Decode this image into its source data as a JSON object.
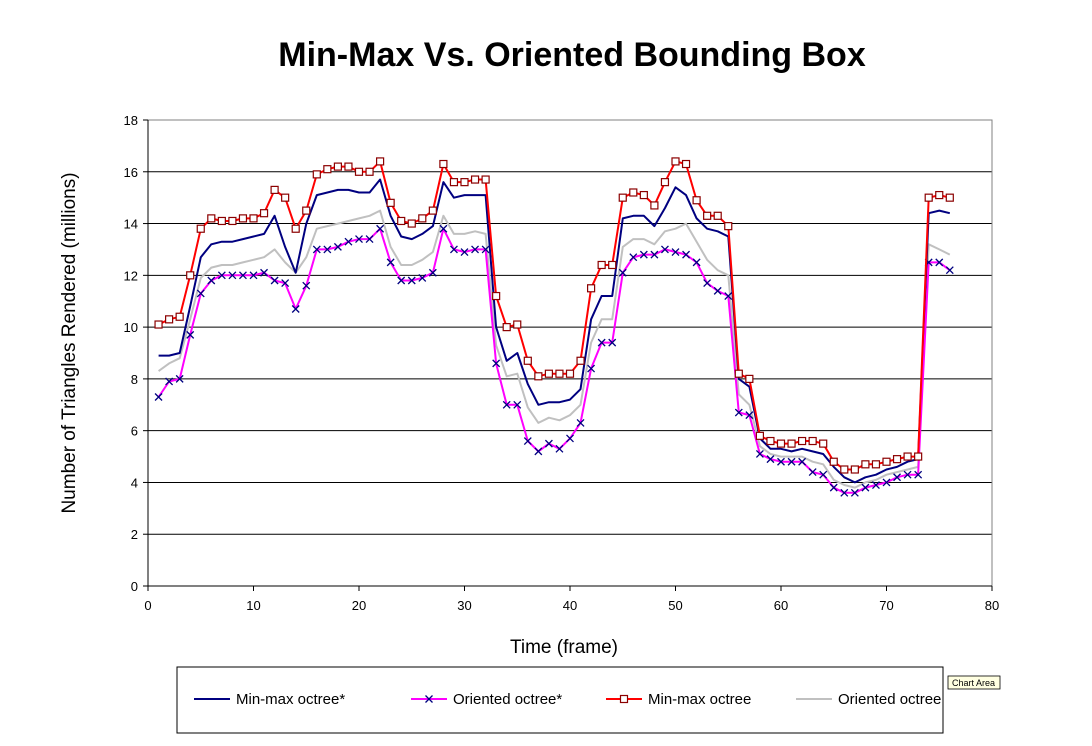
{
  "chart_data": {
    "type": "line",
    "title": "Min-Max Vs. Oriented Bounding Box",
    "xlabel": "Time (frame)",
    "ylabel": "Number of Triangles Rendered (millions)",
    "xlim": [
      0,
      80
    ],
    "ylim": [
      0,
      18
    ],
    "xticks": [
      0,
      10,
      20,
      30,
      40,
      50,
      60,
      70,
      80
    ],
    "yticks": [
      0,
      2,
      4,
      6,
      8,
      10,
      12,
      14,
      16,
      18
    ],
    "grid": "horizontal",
    "legend_position": "bottom",
    "x": [
      1,
      2,
      3,
      4,
      5,
      6,
      7,
      8,
      9,
      10,
      11,
      12,
      13,
      14,
      15,
      16,
      17,
      18,
      19,
      20,
      21,
      22,
      23,
      24,
      25,
      26,
      27,
      28,
      29,
      30,
      31,
      32,
      33,
      34,
      35,
      36,
      37,
      38,
      39,
      40,
      41,
      42,
      43,
      44,
      45,
      46,
      47,
      48,
      49,
      50,
      51,
      52,
      53,
      54,
      55,
      56,
      57,
      58,
      59,
      60,
      61,
      62,
      63,
      64,
      65,
      66,
      67,
      68,
      69,
      70,
      71,
      72,
      73,
      74,
      75,
      76
    ],
    "series": [
      {
        "name": "Min-max octree*",
        "color": "#000080",
        "marker": "none",
        "values": [
          8.9,
          8.9,
          9.0,
          10.8,
          12.7,
          13.2,
          13.3,
          13.3,
          13.4,
          13.5,
          13.6,
          14.3,
          13.1,
          12.1,
          14.0,
          15.1,
          15.2,
          15.3,
          15.3,
          15.2,
          15.2,
          15.7,
          14.3,
          13.5,
          13.4,
          13.6,
          13.9,
          15.6,
          15.0,
          15.1,
          15.1,
          15.1,
          10.0,
          8.7,
          9.0,
          7.8,
          7.0,
          7.1,
          7.1,
          7.2,
          7.6,
          10.3,
          11.2,
          11.2,
          14.2,
          14.3,
          14.3,
          13.9,
          14.6,
          15.4,
          15.1,
          14.2,
          13.8,
          13.7,
          13.5,
          8.0,
          7.7,
          5.7,
          5.3,
          5.3,
          5.2,
          5.3,
          5.2,
          5.1,
          4.6,
          4.2,
          4.0,
          4.2,
          4.3,
          4.5,
          4.6,
          4.8,
          4.9,
          14.4,
          14.5,
          14.4
        ]
      },
      {
        "name": "Oriented octree*",
        "color": "#ff00ff",
        "marker": "x",
        "values": [
          7.3,
          7.9,
          8.0,
          9.7,
          11.3,
          11.8,
          12.0,
          12.0,
          12.0,
          12.0,
          12.1,
          11.8,
          11.7,
          10.7,
          11.6,
          13.0,
          13.0,
          13.1,
          13.3,
          13.4,
          13.4,
          13.8,
          12.5,
          11.8,
          11.8,
          11.9,
          12.1,
          13.8,
          13.0,
          12.9,
          13.0,
          13.0,
          8.6,
          7.0,
          7.0,
          5.6,
          5.2,
          5.5,
          5.3,
          5.7,
          6.3,
          8.4,
          9.4,
          9.4,
          12.1,
          12.7,
          12.8,
          12.8,
          13.0,
          12.9,
          12.8,
          12.5,
          11.7,
          11.4,
          11.2,
          6.7,
          6.6,
          5.1,
          4.9,
          4.8,
          4.8,
          4.8,
          4.4,
          4.3,
          3.8,
          3.6,
          3.6,
          3.8,
          3.9,
          4.0,
          4.2,
          4.3,
          4.3,
          12.5,
          12.5,
          12.2
        ]
      },
      {
        "name": "Min-max octree",
        "color": "#ff0000",
        "marker": "square",
        "values": [
          10.1,
          10.3,
          10.4,
          12.0,
          13.8,
          14.2,
          14.1,
          14.1,
          14.2,
          14.2,
          14.4,
          15.3,
          15.0,
          13.8,
          14.5,
          15.9,
          16.1,
          16.2,
          16.2,
          16.0,
          16.0,
          16.4,
          14.8,
          14.1,
          14.0,
          14.2,
          14.5,
          16.3,
          15.6,
          15.6,
          15.7,
          15.7,
          11.2,
          10.0,
          10.1,
          8.7,
          8.1,
          8.2,
          8.2,
          8.2,
          8.7,
          11.5,
          12.4,
          12.4,
          15.0,
          15.2,
          15.1,
          14.7,
          15.6,
          16.4,
          16.3,
          14.9,
          14.3,
          14.3,
          13.9,
          8.2,
          8.0,
          5.8,
          5.6,
          5.5,
          5.5,
          5.6,
          5.6,
          5.5,
          4.8,
          4.5,
          4.5,
          4.7,
          4.7,
          4.8,
          4.9,
          5.0,
          5.0,
          15.0,
          15.1,
          15.0
        ]
      },
      {
        "name": "Oriented octree",
        "color": "#c0c0c0",
        "marker": "none",
        "values": [
          8.3,
          8.6,
          8.8,
          10.3,
          11.9,
          12.3,
          12.4,
          12.4,
          12.5,
          12.6,
          12.7,
          13.0,
          12.5,
          12.1,
          12.7,
          13.8,
          13.9,
          14.0,
          14.1,
          14.2,
          14.3,
          14.5,
          13.1,
          12.4,
          12.4,
          12.6,
          12.9,
          14.3,
          13.6,
          13.6,
          13.7,
          13.6,
          9.3,
          8.1,
          8.2,
          6.9,
          6.3,
          6.5,
          6.4,
          6.6,
          7.0,
          9.4,
          10.3,
          10.3,
          13.1,
          13.4,
          13.4,
          13.2,
          13.7,
          13.8,
          14.0,
          13.3,
          12.6,
          12.2,
          12.0,
          7.4,
          7.0,
          5.4,
          5.1,
          5.0,
          5.0,
          5.0,
          4.8,
          4.7,
          4.1,
          3.9,
          3.8,
          4.0,
          4.1,
          4.3,
          4.4,
          4.5,
          4.6,
          13.2,
          13.0,
          12.8
        ]
      }
    ]
  },
  "tooltip": {
    "text": "Chart Area"
  }
}
